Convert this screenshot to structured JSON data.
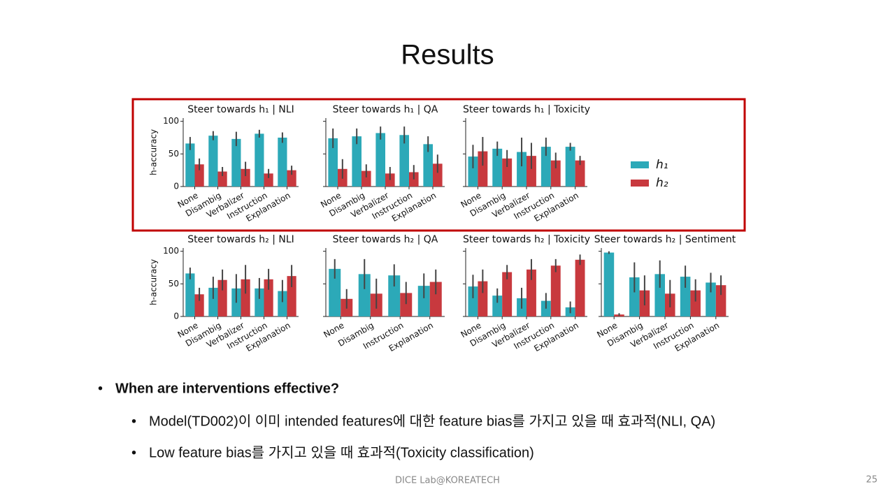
{
  "title": "Results",
  "bullets": [
    {
      "text": "When are interventions effective?",
      "sub": [
        "Model(TD002)이 이미 intended features에 대한 feature bias를 가지고 있을 때 효과적(NLI, QA)",
        "Low feature bias를 가지고 있을 때 효과적(Toxicity classification)"
      ]
    }
  ],
  "footer": "DICE Lab@KOREATECH",
  "page_number": "25",
  "chart_data": [
    {
      "type": "bar",
      "title": "Steer towards h₁ | NLI",
      "ylabel": "h-accuracy",
      "categories": [
        "None",
        "Disambig",
        "Verbalizer",
        "Instruction",
        "Explanation"
      ],
      "series": [
        {
          "name": "h₁",
          "color": "#2ca9b8",
          "values": [
            66,
            78,
            73,
            81,
            75
          ],
          "errors": [
            10,
            7,
            11,
            6,
            8
          ]
        },
        {
          "name": "h₂",
          "color": "#c8393e",
          "values": [
            34,
            23,
            27,
            20,
            25
          ],
          "errors": [
            9,
            7,
            11,
            7,
            7
          ]
        }
      ],
      "ylim": [
        0,
        105
      ],
      "yticks": [
        0,
        50,
        100
      ]
    },
    {
      "type": "bar",
      "title": "Steer towards h₁ | QA",
      "categories": [
        "None",
        "Disambig",
        "Verbalizer",
        "Instruction",
        "Explanation"
      ],
      "series": [
        {
          "color": "#2ca9b8",
          "values": [
            74,
            77,
            82,
            79,
            65
          ],
          "errors": [
            15,
            12,
            10,
            13,
            12
          ]
        },
        {
          "color": "#c8393e",
          "values": [
            27,
            24,
            20,
            22,
            35
          ],
          "errors": [
            15,
            10,
            10,
            11,
            14
          ]
        }
      ],
      "ylim": [
        0,
        105
      ],
      "yticks": [
        0,
        50,
        100
      ]
    },
    {
      "type": "bar",
      "title": "Steer towards h₁ | Toxicity",
      "categories": [
        "None",
        "Disambig",
        "Verbalizer",
        "Instruction",
        "Explanation"
      ],
      "series": [
        {
          "color": "#2ca9b8",
          "values": [
            46,
            58,
            53,
            61,
            61
          ],
          "errors": [
            18,
            11,
            22,
            14,
            6
          ]
        },
        {
          "color": "#c8393e",
          "values": [
            54,
            43,
            47,
            40,
            40
          ],
          "errors": [
            22,
            13,
            20,
            12,
            7
          ]
        }
      ],
      "ylim": [
        0,
        105
      ],
      "yticks": [
        0,
        50,
        100
      ]
    },
    {
      "type": "bar",
      "title": "Steer towards h₂ | NLI",
      "ylabel": "h-accuracy",
      "categories": [
        "None",
        "Disambig",
        "Verbalizer",
        "Instruction",
        "Explanation"
      ],
      "series": [
        {
          "color": "#2ca9b8",
          "values": [
            66,
            44,
            43,
            43,
            39
          ],
          "errors": [
            9,
            17,
            22,
            16,
            17
          ]
        },
        {
          "color": "#c8393e",
          "values": [
            34,
            56,
            57,
            57,
            62
          ],
          "errors": [
            10,
            16,
            22,
            16,
            17
          ]
        }
      ],
      "ylim": [
        0,
        105
      ],
      "yticks": [
        0,
        50,
        100
      ]
    },
    {
      "type": "bar",
      "title": "Steer towards h₂ | QA",
      "categories": [
        "None",
        "Disambig",
        "Instruction",
        "Explanation"
      ],
      "series": [
        {
          "color": "#2ca9b8",
          "values": [
            73,
            65,
            63,
            47
          ],
          "errors": [
            15,
            23,
            17,
            19
          ]
        },
        {
          "color": "#c8393e",
          "values": [
            27,
            35,
            36,
            53
          ],
          "errors": [
            15,
            23,
            17,
            19
          ]
        }
      ],
      "ylim": [
        0,
        105
      ],
      "yticks": [
        0,
        50,
        100
      ]
    },
    {
      "type": "bar",
      "title": "Steer towards h₂ | Toxicity",
      "categories": [
        "None",
        "Disambig",
        "Verbalizer",
        "Instruction",
        "Explanation"
      ],
      "series": [
        {
          "color": "#2ca9b8",
          "values": [
            46,
            32,
            28,
            24,
            14
          ],
          "errors": [
            18,
            11,
            16,
            12,
            9
          ]
        },
        {
          "color": "#c8393e",
          "values": [
            54,
            68,
            72,
            78,
            87
          ],
          "errors": [
            18,
            11,
            16,
            10,
            8
          ]
        }
      ],
      "ylim": [
        0,
        105
      ],
      "yticks": [
        0,
        50,
        100
      ]
    },
    {
      "type": "bar",
      "title": "Steer towards h₂ | Sentiment",
      "categories": [
        "None",
        "Disambig",
        "Verbalizer",
        "Instruction",
        "Explanation"
      ],
      "series": [
        {
          "color": "#2ca9b8",
          "values": [
            98,
            60,
            65,
            61,
            52
          ],
          "errors": [
            2,
            23,
            21,
            17,
            15
          ]
        },
        {
          "color": "#c8393e",
          "values": [
            3,
            40,
            35,
            40,
            48
          ],
          "errors": [
            2,
            23,
            21,
            17,
            15
          ]
        }
      ],
      "ylim": [
        0,
        105
      ],
      "yticks": [
        0,
        50,
        100
      ]
    }
  ]
}
